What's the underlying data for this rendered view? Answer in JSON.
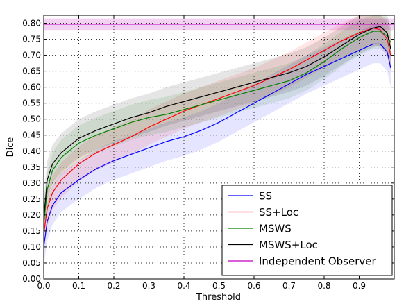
{
  "chart_data": {
    "type": "line",
    "xlabel": "Threshold",
    "ylabel": "Dice",
    "xlim": [
      0.0,
      1.0
    ],
    "ylim": [
      0.0,
      0.8
    ],
    "x_ticks": [
      0.0,
      0.1,
      0.2,
      0.3,
      0.4,
      0.5,
      0.6,
      0.7,
      0.8,
      0.9
    ],
    "x_tick_labels": [
      "0.0",
      "0.1",
      "0.2",
      "0.3",
      "0.4",
      "0.5",
      "0.6",
      "0.7",
      "0.8",
      "0.9"
    ],
    "y_ticks": [
      0.0,
      0.05,
      0.1,
      0.15,
      0.2,
      0.25,
      0.3,
      0.35,
      0.4,
      0.45,
      0.5,
      0.55,
      0.6,
      0.65,
      0.7,
      0.75,
      0.8
    ],
    "y_tick_labels": [
      "0.00",
      "0.05",
      "0.10",
      "0.15",
      "0.20",
      "0.25",
      "0.30",
      "0.35",
      "0.40",
      "0.45",
      "0.50",
      "0.55",
      "0.60",
      "0.65",
      "0.70",
      "0.75",
      "0.80"
    ],
    "grid": true,
    "legend_position": "bottom-right",
    "series": [
      {
        "name": "SS",
        "color": "#0000ff",
        "x": [
          0.0,
          0.01,
          0.025,
          0.05,
          0.1,
          0.15,
          0.2,
          0.25,
          0.3,
          0.35,
          0.4,
          0.45,
          0.5,
          0.55,
          0.6,
          0.65,
          0.7,
          0.75,
          0.8,
          0.85,
          0.9,
          0.94,
          0.96,
          0.98,
          0.99
        ],
        "y": [
          0.1,
          0.18,
          0.23,
          0.27,
          0.31,
          0.345,
          0.37,
          0.39,
          0.41,
          0.43,
          0.445,
          0.465,
          0.49,
          0.52,
          0.55,
          0.58,
          0.61,
          0.64,
          0.665,
          0.69,
          0.715,
          0.735,
          0.735,
          0.71,
          0.66
        ],
        "band": 0.06
      },
      {
        "name": "SS+Loc",
        "color": "#ff0000",
        "x": [
          0.0,
          0.01,
          0.025,
          0.05,
          0.1,
          0.15,
          0.2,
          0.25,
          0.3,
          0.35,
          0.4,
          0.45,
          0.5,
          0.55,
          0.6,
          0.65,
          0.7,
          0.75,
          0.8,
          0.85,
          0.9,
          0.94,
          0.96,
          0.98,
          0.99
        ],
        "y": [
          0.14,
          0.22,
          0.27,
          0.31,
          0.36,
          0.395,
          0.42,
          0.445,
          0.475,
          0.5,
          0.525,
          0.545,
          0.565,
          0.585,
          0.605,
          0.63,
          0.655,
          0.685,
          0.715,
          0.745,
          0.77,
          0.785,
          0.78,
          0.75,
          0.7
        ],
        "band": 0.055
      },
      {
        "name": "MSWS",
        "color": "#008000",
        "x": [
          0.0,
          0.01,
          0.025,
          0.05,
          0.1,
          0.15,
          0.2,
          0.25,
          0.3,
          0.35,
          0.4,
          0.45,
          0.5,
          0.55,
          0.6,
          0.65,
          0.7,
          0.75,
          0.8,
          0.85,
          0.9,
          0.94,
          0.96,
          0.98,
          0.99
        ],
        "y": [
          0.17,
          0.28,
          0.34,
          0.38,
          0.425,
          0.45,
          0.47,
          0.49,
          0.505,
          0.515,
          0.53,
          0.545,
          0.56,
          0.575,
          0.59,
          0.605,
          0.62,
          0.645,
          0.68,
          0.72,
          0.755,
          0.775,
          0.775,
          0.76,
          0.74
        ],
        "band": 0.055
      },
      {
        "name": "MSWS+Loc",
        "color": "#000000",
        "x": [
          0.0,
          0.01,
          0.025,
          0.05,
          0.1,
          0.15,
          0.2,
          0.25,
          0.3,
          0.35,
          0.4,
          0.45,
          0.5,
          0.55,
          0.6,
          0.65,
          0.7,
          0.75,
          0.8,
          0.85,
          0.9,
          0.94,
          0.96,
          0.98,
          0.99
        ],
        "y": [
          0.19,
          0.31,
          0.36,
          0.395,
          0.44,
          0.465,
          0.485,
          0.505,
          0.52,
          0.54,
          0.555,
          0.57,
          0.585,
          0.6,
          0.615,
          0.63,
          0.645,
          0.665,
          0.695,
          0.73,
          0.765,
          0.785,
          0.79,
          0.77,
          0.72
        ],
        "band": 0.06
      },
      {
        "name": "Independent Observer",
        "color": "#bf00bf",
        "x": [
          0.0,
          1.0
        ],
        "y": [
          0.797,
          0.797
        ],
        "band": 0.018
      }
    ]
  }
}
